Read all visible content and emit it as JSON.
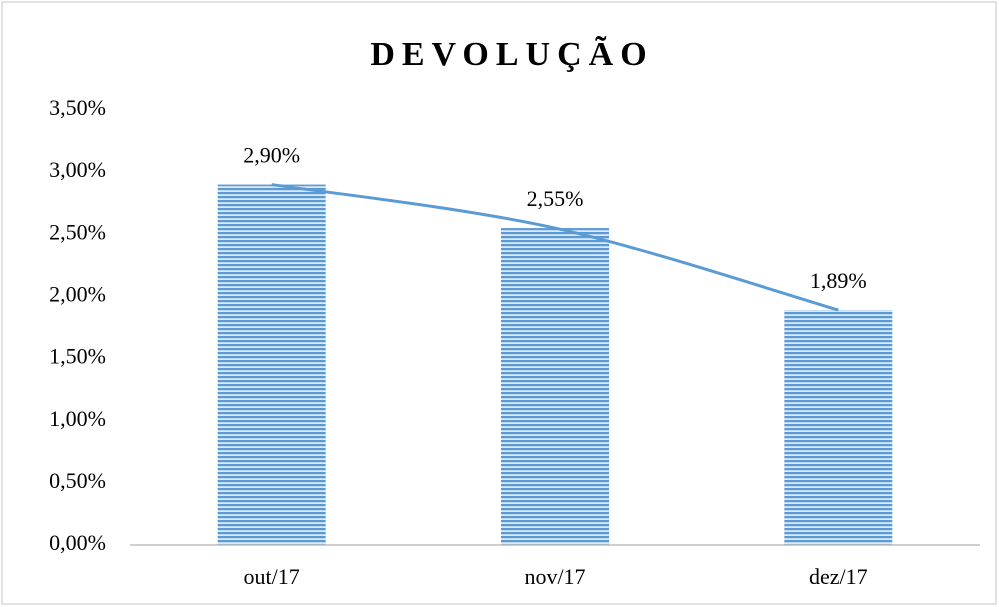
{
  "chart_data": {
    "type": "bar",
    "title": "DEVOLUÇÃO",
    "categories": [
      "out/17",
      "nov/17",
      "dez/17"
    ],
    "values": [
      2.9,
      2.55,
      1.89
    ],
    "value_labels": [
      "2,90%",
      "2,55%",
      "1,89%"
    ],
    "color": "#5b9bd5",
    "ylim": [
      0,
      3.5
    ],
    "yticks": [
      {
        "value": 0,
        "label": "0,00%"
      },
      {
        "value": 0.5,
        "label": "0,50%"
      },
      {
        "value": 1,
        "label": "1,00%"
      },
      {
        "value": 1.5,
        "label": "1,50%"
      },
      {
        "value": 2,
        "label": "2,00%"
      },
      {
        "value": 2.5,
        "label": "2,50%"
      },
      {
        "value": 3,
        "label": "3,00%"
      },
      {
        "value": 3.5,
        "label": "3,50%"
      }
    ],
    "grid": false,
    "trendline": true
  }
}
